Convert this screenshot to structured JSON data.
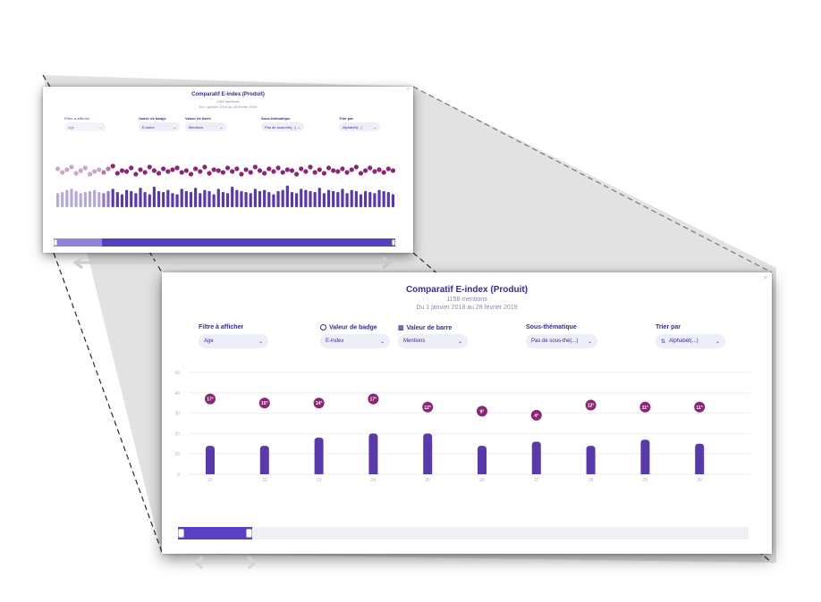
{
  "colors": {
    "brand": "#3c2a8c",
    "bar": "#5a3aa8",
    "badge": "#8a2775",
    "scroll_thumb": "#5b3fc2"
  },
  "large_view": {
    "title": "Comparatif E-index (Produit)",
    "mentions": "1158 mentions",
    "date_range": "Du 1 janvier 2018 au 28 février 2019",
    "filters": [
      {
        "label": "Filtre à afficher",
        "value": "Age",
        "icon": ""
      },
      {
        "label": "Valeur de badge",
        "value": "E-index",
        "icon": "badge-icon"
      },
      {
        "label": "Valeur de barre",
        "value": "Mentions",
        "icon": "bar-chart-icon"
      },
      {
        "label": "Sous-thématique",
        "value": "Pas de sous-thé(...)",
        "icon": ""
      },
      {
        "label": "Trier par",
        "value": "Alphabét(...)",
        "icon": "sort-icon"
      }
    ],
    "chart_data": {
      "type": "bar",
      "categories": [
        "21",
        "22",
        "23",
        "24",
        "25",
        "26",
        "27",
        "28",
        "29",
        "30"
      ],
      "values": [
        14,
        14,
        18,
        20,
        20,
        14,
        16,
        14,
        17,
        15
      ],
      "badges": [
        "17°",
        "15°",
        "14°",
        "17°",
        "12°",
        "9°",
        "4°",
        "12°",
        "11°",
        "11°"
      ],
      "badge_levels": [
        37,
        35,
        35,
        37,
        33,
        31,
        29,
        34,
        33,
        33
      ],
      "yticks": [
        "0",
        "10",
        "20",
        "30",
        "40",
        "50"
      ],
      "ylim": [
        0,
        50
      ]
    },
    "scrollbar": {
      "position_fraction": 0.0,
      "window_fraction": 0.13
    }
  },
  "small_view": {
    "title": "Comparatif E-index (Produit)",
    "mentions": "1158 mentions",
    "date_range": "Du 1 janvier 2018 au 28 février 2019",
    "filters": [
      {
        "label": "Filtre à afficher",
        "value": "Age"
      },
      {
        "label": "Valeur de badge",
        "value": "E-index"
      },
      {
        "label": "Valeur de barre",
        "value": "Mentions"
      },
      {
        "label": "Sous-thématique",
        "value": "Pas de sous-thé(...)"
      },
      {
        "label": "Trier par",
        "value": "Alphabét(...)"
      }
    ],
    "chart_data": {
      "type": "bar",
      "values": [
        13,
        14,
        16,
        17,
        15,
        13,
        14,
        15,
        16,
        14,
        13,
        15,
        17,
        14,
        12,
        16,
        15,
        13,
        18,
        14,
        12,
        19,
        15,
        14,
        16,
        13,
        12,
        17,
        15,
        14,
        18,
        13,
        16,
        15,
        12,
        17,
        14,
        13,
        19,
        16,
        15,
        14,
        13,
        17,
        15,
        16,
        14,
        12,
        15,
        16,
        20,
        14,
        13,
        17,
        16,
        15,
        14,
        18,
        13,
        16,
        15,
        14,
        17,
        13,
        16,
        15,
        12,
        15,
        14,
        13,
        16,
        15,
        14,
        12
      ],
      "badges": [
        56,
        52,
        55,
        58,
        51,
        54,
        57,
        50,
        53,
        55,
        52,
        56,
        59,
        51,
        54,
        53,
        57,
        50,
        55,
        52,
        58,
        54,
        51,
        56,
        53,
        55,
        57,
        52,
        54,
        50,
        56,
        53,
        58,
        51,
        55,
        54,
        52,
        57,
        53,
        56,
        50,
        55,
        52,
        58,
        54,
        51,
        56,
        53,
        57,
        52,
        55,
        54,
        50,
        56,
        53,
        58,
        52,
        55,
        51,
        57,
        54,
        53,
        56,
        52,
        55,
        58,
        51,
        54,
        57,
        53,
        55,
        52,
        56,
        54
      ]
    },
    "scrollbar": {
      "position_fraction": 0.0,
      "window_fraction": 1.0
    }
  }
}
